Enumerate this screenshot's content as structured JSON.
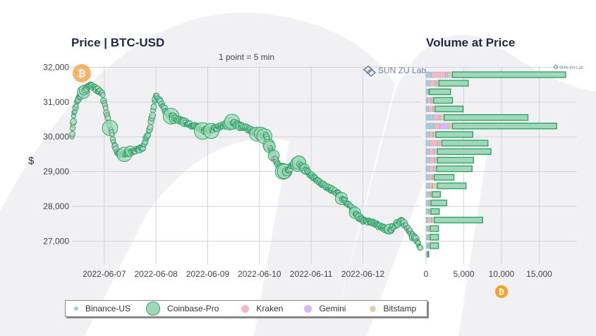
{
  "price_title": "Price | BTC-USD",
  "volume_title": "Volume at Price",
  "subtitle": "1 point = 5 min",
  "watermark": "SUN ZU Lab",
  "watermark_small": "SUN ZU Lab",
  "colors": {
    "Binance-US": "#a6cce4",
    "Coinbase-Pro": "#9fd9b9",
    "Kraken": "#f6b6c4",
    "Gemini": "#dcb6f2",
    "Bitstamp": "#ddd0a8",
    "outline": "#34a26a",
    "bitcoin": "#f7931a"
  },
  "chart_data": [
    {
      "type": "scatter",
      "title": "Price | BTC-USD",
      "subtitle": "1 point = 5 min",
      "ylabel": "$",
      "xlabel": "",
      "ylim": [
        26500,
        32050
      ],
      "xlim": [
        "2022-06-06 09:00",
        "2022-06-13 03:00"
      ],
      "x_ticks": [
        "2022-06-07",
        "2022-06-08",
        "2022-06-09",
        "2022-06-10",
        "2022-06-11",
        "2022-06-12"
      ],
      "y_ticks": [
        "27,000",
        "28,000",
        "29,000",
        "30,000",
        "31,000",
        "32,000"
      ],
      "y_tick_values": [
        27000,
        28000,
        29000,
        30000,
        31000,
        32000
      ],
      "grid": true,
      "series": [
        {
          "name": "Coinbase-Pro",
          "x": [
            "2022-06-06 09:00",
            "2022-06-06 10:00",
            "2022-06-06 12:00",
            "2022-06-06 14:00",
            "2022-06-06 17:00",
            "2022-06-06 20:00",
            "2022-06-06 23:00",
            "2022-06-07 01:00",
            "2022-06-07 03:00",
            "2022-06-07 06:00",
            "2022-06-07 12:00",
            "2022-06-07 18:00",
            "2022-06-07 21:00",
            "2022-06-08 00:00",
            "2022-06-08 06:00",
            "2022-06-08 12:00",
            "2022-06-08 18:00",
            "2022-06-09 00:00",
            "2022-06-09 06:00",
            "2022-06-09 12:00",
            "2022-06-09 18:00",
            "2022-06-10 00:00",
            "2022-06-10 03:00",
            "2022-06-10 06:00",
            "2022-06-10 09:00",
            "2022-06-10 12:00",
            "2022-06-10 15:00",
            "2022-06-10 18:00",
            "2022-06-11 00:00",
            "2022-06-11 06:00",
            "2022-06-11 12:00",
            "2022-06-11 18:00",
            "2022-06-12 00:00",
            "2022-06-12 06:00",
            "2022-06-12 12:00",
            "2022-06-12 18:00",
            "2022-06-13 00:00",
            "2022-06-13 03:00"
          ],
          "y": [
            30000,
            30700,
            31100,
            31300,
            31500,
            31400,
            31250,
            30700,
            30200,
            29500,
            29550,
            29700,
            30200,
            31200,
            30600,
            30450,
            30300,
            30150,
            30300,
            30400,
            30250,
            30050,
            30050,
            29500,
            29200,
            28950,
            29150,
            29250,
            28900,
            28600,
            28400,
            28000,
            27600,
            27500,
            27300,
            27600,
            27100,
            26800
          ]
        }
      ]
    },
    {
      "type": "bar",
      "orientation": "horizontal",
      "title": "Volume at Price",
      "stacked": true,
      "xlim": [
        0,
        20000
      ],
      "x_ticks": [
        "0",
        "5,000",
        "10,000",
        "15,000"
      ],
      "x_tick_values": [
        0,
        5000,
        10000,
        15000
      ],
      "y_categories": [
        32000,
        31750,
        31500,
        31250,
        31000,
        30750,
        30500,
        30250,
        30000,
        29750,
        29500,
        29250,
        29000,
        28750,
        28500,
        28250,
        28000,
        27750,
        27500,
        27250,
        27000,
        26750
      ],
      "series": [
        {
          "name": "Binance-US",
          "values": [
            700,
            500,
            200,
            200,
            300,
            1000,
            1100,
            400,
            500,
            400,
            500,
            400,
            400,
            400,
            300,
            300,
            300,
            200,
            200,
            200,
            200,
            100
          ]
        },
        {
          "name": "Coinbase-Pro",
          "values": [
            15000,
            3900,
            2800,
            2500,
            3700,
            11100,
            13800,
            4900,
            6100,
            7100,
            4800,
            4700,
            2600,
            3800,
            1100,
            2100,
            1100,
            6400,
            1100,
            1100,
            1100,
            100
          ]
        },
        {
          "name": "Kraken",
          "values": [
            1900,
            700,
            100,
            400,
            600,
            700,
            700,
            500,
            1000,
            600,
            600,
            600,
            400,
            400,
            200,
            100,
            100,
            500,
            100,
            100,
            100,
            100
          ]
        },
        {
          "name": "Gemini",
          "values": [
            300,
            200,
            50,
            200,
            100,
            200,
            1200,
            100,
            300,
            200,
            100,
            100,
            100,
            100,
            100,
            50,
            50,
            100,
            50,
            50,
            50,
            0
          ]
        },
        {
          "name": "Bitstamp",
          "values": [
            600,
            300,
            100,
            200,
            200,
            500,
            500,
            300,
            300,
            300,
            300,
            300,
            200,
            600,
            200,
            200,
            200,
            300,
            200,
            200,
            200,
            50
          ]
        }
      ]
    }
  ]
}
